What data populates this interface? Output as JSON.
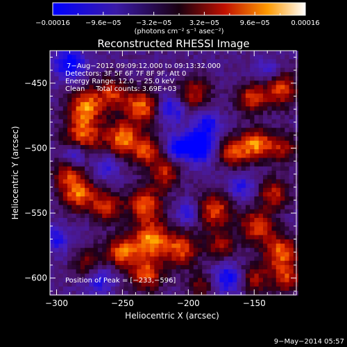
{
  "chart_data": {
    "type": "heatmap",
    "title": "Reconstructed RHESSI Image",
    "xlabel": "Heliocentric X (arcsec)",
    "ylabel": "Heliocentric Y (arcsec)",
    "xlim": [
      -305,
      -118
    ],
    "ylim": [
      -613,
      -425
    ],
    "x_ticks": [
      -300,
      -250,
      -200,
      -150
    ],
    "x_tick_labels": [
      "−300",
      "−250",
      "−200",
      "−150"
    ],
    "y_ticks": [
      -450,
      -500,
      -550,
      -600
    ],
    "y_tick_labels": [
      "−450",
      "−500",
      "−550",
      "−600"
    ],
    "colorbar": {
      "range": [
        -0.00016,
        0.00016
      ],
      "ticks": [
        -0.00016,
        -9.6e-05,
        -3.2e-05,
        3.2e-05,
        9.6e-05,
        0.00016
      ],
      "tick_labels": [
        "−0.00016",
        "−9.6e−05",
        "−3.2e−05",
        "3.2e−05",
        "9.6e−05",
        "0.00016"
      ],
      "unit_label": "(photons cm⁻² s⁻¹ asec⁻²)"
    },
    "annotations": [
      "7−Aug−2012 09:09:12.000 to 09:13:32.000",
      "Detectors: 3F 5F 6F 7F 8F 9F, Att 0",
      "Energy Range: 12.0 − 25.0 keV",
      "Clean     Total counts: 3.69E+03"
    ],
    "peak_label": "Position of Peak = [−233,−596]",
    "peak_position": [
      -233,
      -596
    ],
    "footer_date": "9−May−2014 05:57",
    "blobs": [
      {
        "x": -278,
        "y": -468,
        "r": 9,
        "v": 0.9
      },
      {
        "x": -280,
        "y": -490,
        "r": 10,
        "v": 0.85
      },
      {
        "x": -258,
        "y": -458,
        "r": 9,
        "v": 0.7
      },
      {
        "x": -235,
        "y": -468,
        "r": 9,
        "v": 0.9
      },
      {
        "x": -250,
        "y": -492,
        "r": 9,
        "v": 0.95
      },
      {
        "x": -232,
        "y": -502,
        "r": 8,
        "v": 0.8
      },
      {
        "x": -196,
        "y": -458,
        "r": 9,
        "v": 0.65
      },
      {
        "x": -152,
        "y": -462,
        "r": 8,
        "v": 0.75
      },
      {
        "x": -130,
        "y": -455,
        "r": 9,
        "v": 0.8
      },
      {
        "x": -148,
        "y": -497,
        "r": 8,
        "v": 0.95
      },
      {
        "x": -166,
        "y": -503,
        "r": 8,
        "v": 0.85
      },
      {
        "x": -128,
        "y": -500,
        "r": 8,
        "v": 0.6
      },
      {
        "x": -292,
        "y": -520,
        "r": 8,
        "v": 0.6
      },
      {
        "x": -283,
        "y": -535,
        "r": 9,
        "v": 0.9
      },
      {
        "x": -262,
        "y": -545,
        "r": 8,
        "v": 0.75
      },
      {
        "x": -233,
        "y": -543,
        "r": 9,
        "v": 0.85
      },
      {
        "x": -218,
        "y": -520,
        "r": 8,
        "v": 0.7
      },
      {
        "x": -228,
        "y": -570,
        "r": 10,
        "v": 0.98
      },
      {
        "x": -250,
        "y": -580,
        "r": 9,
        "v": 0.85
      },
      {
        "x": -205,
        "y": -578,
        "r": 9,
        "v": 0.8
      },
      {
        "x": -275,
        "y": -590,
        "r": 8,
        "v": 0.6
      },
      {
        "x": -180,
        "y": -548,
        "r": 9,
        "v": 0.85
      },
      {
        "x": -175,
        "y": -575,
        "r": 8,
        "v": 0.6
      },
      {
        "x": -148,
        "y": -560,
        "r": 9,
        "v": 0.8
      },
      {
        "x": -130,
        "y": -580,
        "r": 9,
        "v": 0.9
      },
      {
        "x": -125,
        "y": -600,
        "r": 8,
        "v": 0.7
      },
      {
        "x": -150,
        "y": -600,
        "r": 8,
        "v": 0.6
      },
      {
        "x": -135,
        "y": -535,
        "r": 8,
        "v": 0.7
      },
      {
        "x": -232,
        "y": -597,
        "r": 9,
        "v": 0.8
      },
      {
        "x": -190,
        "y": -605,
        "r": 7,
        "v": 0.5
      }
    ],
    "dips": [
      {
        "x": -290,
        "y": -435,
        "r": 8,
        "v": -0.8
      },
      {
        "x": -286,
        "y": -505,
        "r": 6,
        "v": -0.6
      },
      {
        "x": -213,
        "y": -470,
        "r": 8,
        "v": -0.6
      },
      {
        "x": -192,
        "y": -498,
        "r": 9,
        "v": -0.95
      },
      {
        "x": -208,
        "y": -500,
        "r": 6,
        "v": -0.7
      },
      {
        "x": -185,
        "y": -480,
        "r": 6,
        "v": -0.6
      },
      {
        "x": -262,
        "y": -515,
        "r": 6,
        "v": -0.5
      },
      {
        "x": -268,
        "y": -600,
        "r": 8,
        "v": -0.6
      },
      {
        "x": -200,
        "y": -550,
        "r": 6,
        "v": -0.55
      },
      {
        "x": -160,
        "y": -530,
        "r": 7,
        "v": -0.5
      },
      {
        "x": -170,
        "y": -600,
        "r": 8,
        "v": -0.7
      },
      {
        "x": -140,
        "y": -440,
        "r": 6,
        "v": -0.45
      },
      {
        "x": -300,
        "y": -570,
        "r": 7,
        "v": -0.55
      }
    ]
  }
}
